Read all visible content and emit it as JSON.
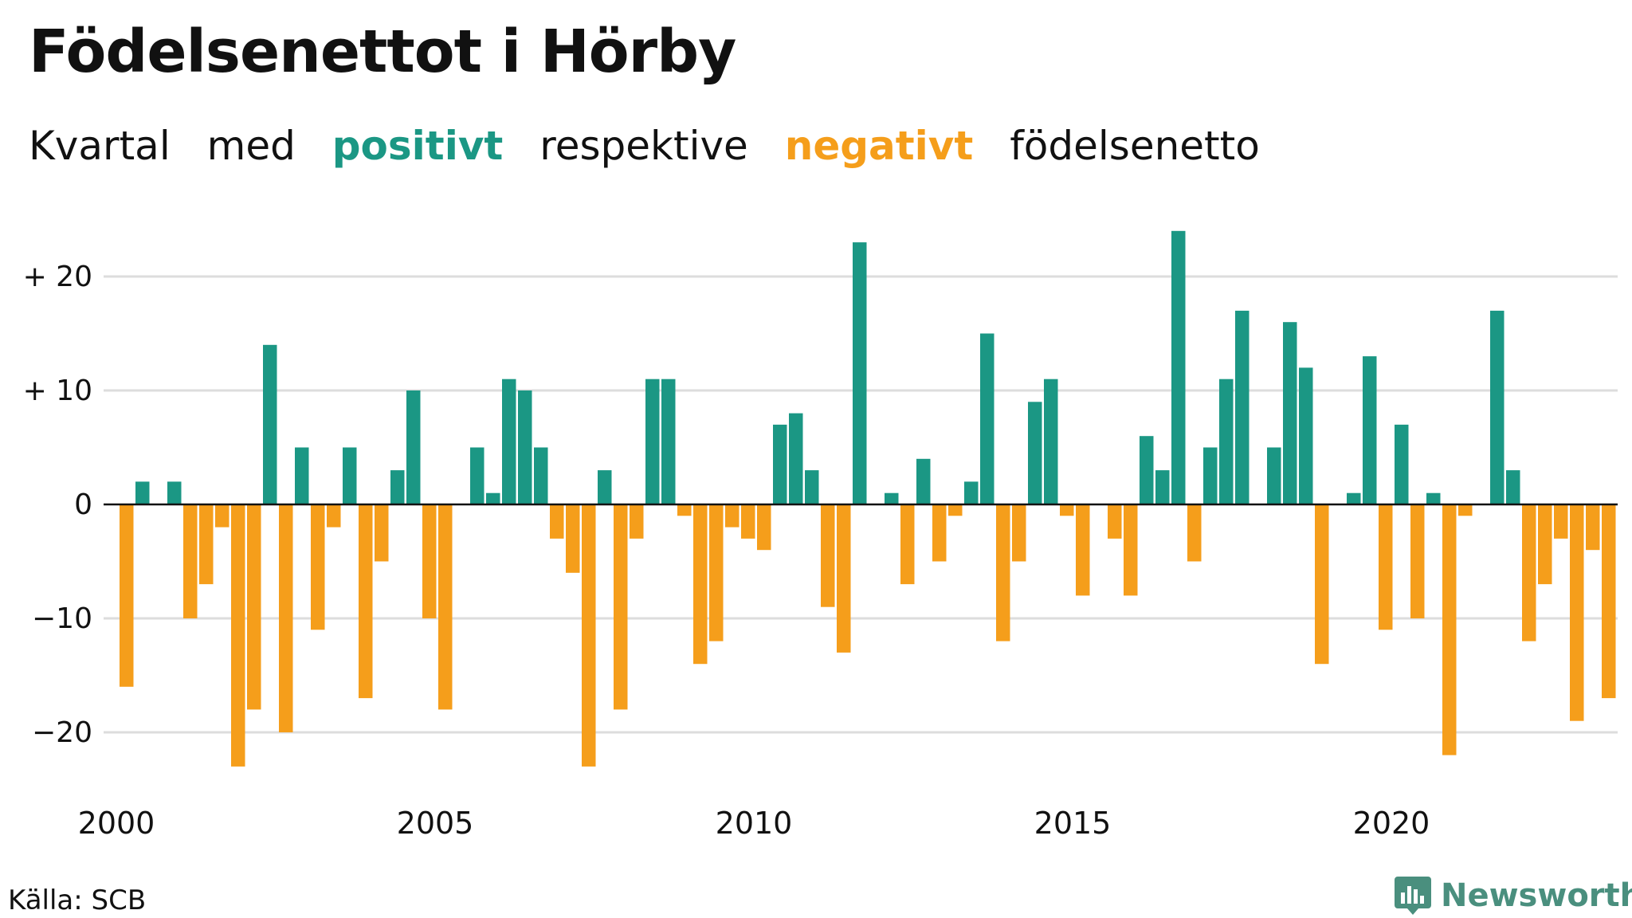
{
  "title": "Födelsenettot i Hörby",
  "subtitle": {
    "part1": "Kvartal",
    "part2": "med",
    "positive_word": "positivt",
    "part3": "respektive",
    "negative_word": "negativt",
    "part4": "födelsenetto"
  },
  "source": "Källa: SCB",
  "brand": "Newsworthy",
  "colors": {
    "positive": "#1b9784",
    "negative": "#f59e1b",
    "grid": "#dddddd",
    "axis": "#111111",
    "brand": "#4a8f7e"
  },
  "chart_data": {
    "type": "bar",
    "x_start": "2000 Q1",
    "x_ticks": [
      "2000",
      "2005",
      "2010",
      "2015",
      "2020"
    ],
    "y_ticks": [
      "−20",
      "−10",
      "0",
      "+ 10",
      "+ 20"
    ],
    "ylim": [
      -25,
      25
    ],
    "grid": true,
    "values": [
      -16,
      2,
      0,
      2,
      -10,
      -7,
      -2,
      -23,
      -18,
      14,
      -20,
      5,
      -11,
      -2,
      5,
      -17,
      -5,
      3,
      10,
      -10,
      -18,
      0,
      5,
      1,
      11,
      10,
      5,
      -3,
      -6,
      -23,
      3,
      -18,
      -3,
      11,
      11,
      -1,
      -14,
      -12,
      -2,
      -3,
      -4,
      7,
      8,
      3,
      -9,
      -13,
      23,
      0,
      1,
      -7,
      4,
      -5,
      -1,
      2,
      15,
      -12,
      -5,
      9,
      11,
      -1,
      -8,
      0,
      -3,
      -8,
      6,
      3,
      24,
      -5,
      5,
      11,
      17,
      0,
      5,
      16,
      12,
      -14,
      0,
      1,
      13,
      -11,
      7,
      -10,
      1,
      -22,
      -1,
      0,
      17,
      3,
      -12,
      -7,
      -3,
      -19,
      -4,
      -17
    ]
  }
}
